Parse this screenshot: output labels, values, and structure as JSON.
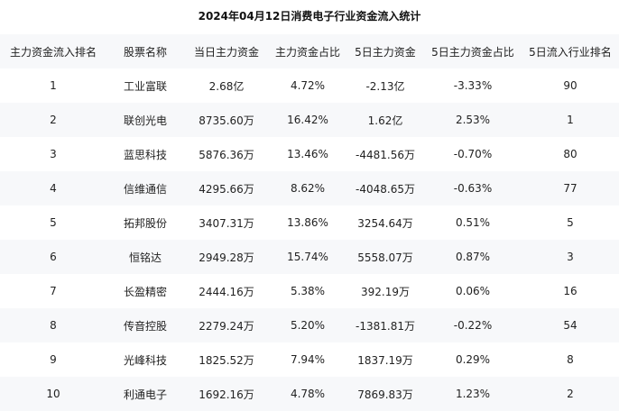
{
  "title": "2024年04月12日消费电子行业资金流入统计",
  "columns": [
    "主力资金流入排名",
    "股票名称",
    "当日主力资金",
    "主力资金占比",
    "5日主力资金",
    "5日主力资金占比",
    "5日流入行业排名"
  ],
  "rows": [
    [
      "1",
      "工业富联",
      "2.68亿",
      "4.72%",
      "-2.13亿",
      "-3.33%",
      "90"
    ],
    [
      "2",
      "联创光电",
      "8735.60万",
      "16.42%",
      "1.62亿",
      "2.53%",
      "1"
    ],
    [
      "3",
      "蓝思科技",
      "5876.36万",
      "13.46%",
      "-4481.56万",
      "-0.70%",
      "80"
    ],
    [
      "4",
      "信维通信",
      "4295.66万",
      "8.62%",
      "-4048.65万",
      "-0.63%",
      "77"
    ],
    [
      "5",
      "拓邦股份",
      "3407.31万",
      "13.86%",
      "3254.64万",
      "0.51%",
      "5"
    ],
    [
      "6",
      "恒铭达",
      "2949.28万",
      "15.74%",
      "5558.07万",
      "0.87%",
      "3"
    ],
    [
      "7",
      "长盈精密",
      "2444.16万",
      "5.38%",
      "392.19万",
      "0.06%",
      "16"
    ],
    [
      "8",
      "传音控股",
      "2279.24万",
      "5.20%",
      "-1381.81万",
      "-0.22%",
      "54"
    ],
    [
      "9",
      "光峰科技",
      "1825.52万",
      "7.94%",
      "1837.19万",
      "0.29%",
      "8"
    ],
    [
      "10",
      "利通电子",
      "1692.16万",
      "4.78%",
      "7869.83万",
      "1.23%",
      "2"
    ]
  ]
}
